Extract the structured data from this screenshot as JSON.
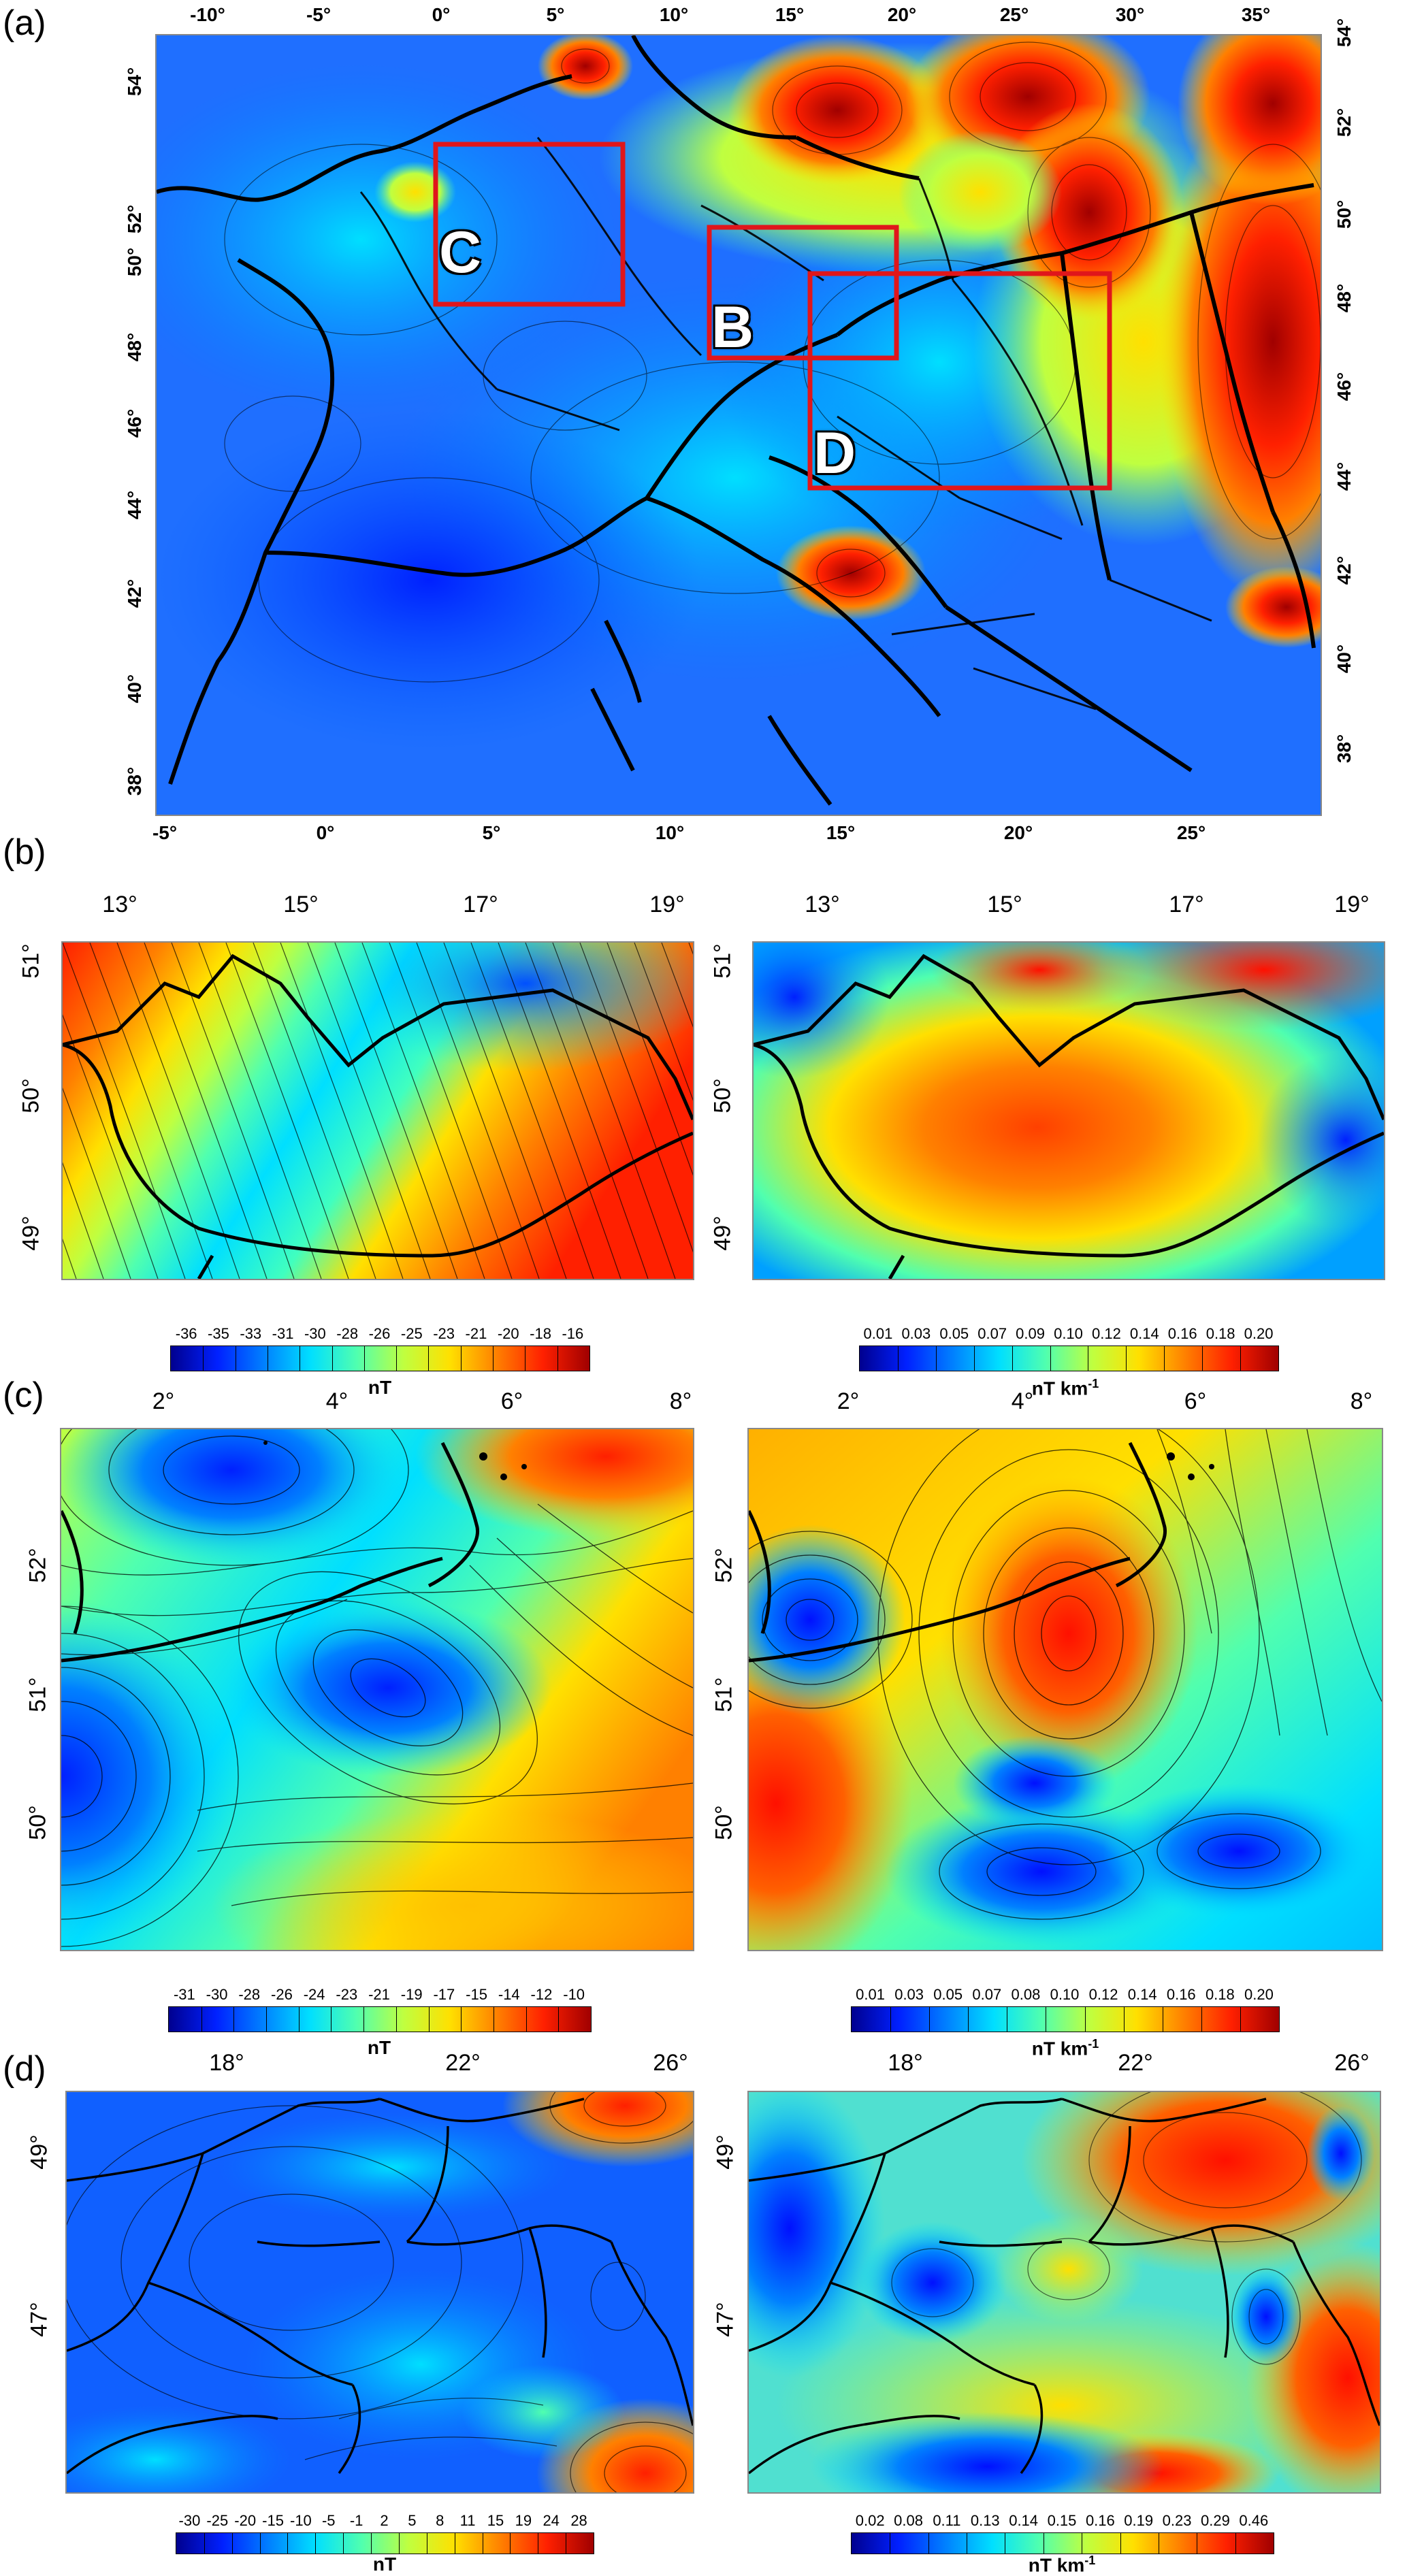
{
  "panels": {
    "a": {
      "label": "(a)",
      "top_ticks": [
        "-10°",
        "-5°",
        "0°",
        "5°",
        "10°",
        "15°",
        "20°",
        "25°",
        "30°",
        "35°"
      ],
      "bottom_ticks": [
        "-5°",
        "0°",
        "5°",
        "10°",
        "15°",
        "20°",
        "25°"
      ],
      "left_ticks": [
        "54°",
        "52°",
        "50°",
        "48°",
        "46°",
        "44°",
        "42°",
        "40°",
        "38°"
      ],
      "right_ticks": [
        "54°",
        "52°",
        "50°",
        "48°",
        "46°",
        "44°",
        "42°",
        "40°",
        "38°"
      ],
      "boxes": [
        "C",
        "B",
        "D"
      ],
      "box_color": "#e0161b"
    },
    "b": {
      "label": "(b)",
      "left": {
        "top_ticks": [
          "13°",
          "15°",
          "17°",
          "19°"
        ],
        "side_ticks": [
          "51°",
          "50°",
          "49°"
        ],
        "colorbar_labels": [
          "-36",
          "-35",
          "-33",
          "-31",
          "-30",
          "-28",
          "-26",
          "-25",
          "-23",
          "-21",
          "-20",
          "-18",
          "-16"
        ],
        "unit": "nT"
      },
      "right": {
        "top_ticks": [
          "13°",
          "15°",
          "17°",
          "19°"
        ],
        "side_ticks": [
          "51°",
          "50°",
          "49°"
        ],
        "colorbar_labels": [
          "0.01",
          "0.03",
          "0.05",
          "0.07",
          "0.09",
          "0.10",
          "0.12",
          "0.14",
          "0.16",
          "0.18",
          "0.20"
        ],
        "unit": "nT km",
        "unit_sup": "-1"
      }
    },
    "c": {
      "label": "(c)",
      "left": {
        "top_ticks": [
          "2°",
          "4°",
          "6°",
          "8°"
        ],
        "side_ticks": [
          "52°",
          "51°",
          "50°"
        ],
        "colorbar_labels": [
          "-31",
          "-30",
          "-28",
          "-26",
          "-24",
          "-23",
          "-21",
          "-19",
          "-17",
          "-15",
          "-14",
          "-12",
          "-10"
        ],
        "unit": "nT"
      },
      "right": {
        "top_ticks": [
          "2°",
          "4°",
          "6°",
          "8°"
        ],
        "side_ticks": [
          "52°",
          "51°",
          "50°"
        ],
        "colorbar_labels": [
          "0.01",
          "0.03",
          "0.05",
          "0.07",
          "0.08",
          "0.10",
          "0.12",
          "0.14",
          "0.16",
          "0.18",
          "0.20"
        ],
        "unit": "nT km",
        "unit_sup": "-1"
      }
    },
    "d": {
      "label": "(d)",
      "left": {
        "top_ticks": [
          "18°",
          "22°",
          "26°"
        ],
        "side_ticks": [
          "49°",
          "47°"
        ],
        "colorbar_labels": [
          "-30",
          "-25",
          "-20",
          "-15",
          "-10",
          "-5",
          "-1",
          "2",
          "5",
          "8",
          "11",
          "15",
          "19",
          "24",
          "28"
        ],
        "unit": "nT"
      },
      "right": {
        "top_ticks": [
          "18°",
          "22°",
          "26°"
        ],
        "side_ticks": [
          "49°",
          "47°"
        ],
        "colorbar_labels": [
          "0.02",
          "0.08",
          "0.11",
          "0.13",
          "0.14",
          "0.15",
          "0.16",
          "0.19",
          "0.23",
          "0.29",
          "0.46"
        ],
        "unit": "nT km",
        "unit_sup": "-1"
      }
    }
  },
  "colors": {
    "jet": [
      "#00008f",
      "#0020ff",
      "#0080ff",
      "#00dfff",
      "#50ffaf",
      "#bfff40",
      "#ffe000",
      "#ff8000",
      "#ff2000",
      "#a00000"
    ],
    "border": "#000000"
  }
}
